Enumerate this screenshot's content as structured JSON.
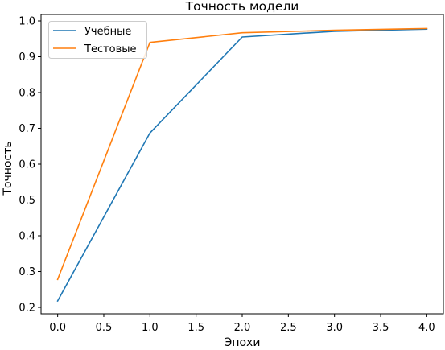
{
  "chart_data": {
    "type": "line",
    "title": "Точность модели",
    "xlabel": "Эпохи",
    "ylabel": "Точность",
    "xlim": [
      -0.18,
      4.18
    ],
    "ylim": [
      0.182,
      1.018
    ],
    "xticks": [
      0.0,
      0.5,
      1.0,
      1.5,
      2.0,
      2.5,
      3.0,
      3.5,
      4.0
    ],
    "xtick_labels": [
      "0.0",
      "0.5",
      "1.0",
      "1.5",
      "2.0",
      "2.5",
      "3.0",
      "3.5",
      "4.0"
    ],
    "yticks": [
      0.2,
      0.3,
      0.4,
      0.5,
      0.6,
      0.7,
      0.8,
      0.9,
      1.0
    ],
    "ytick_labels": [
      "0.2",
      "0.3",
      "0.4",
      "0.5",
      "0.6",
      "0.7",
      "0.8",
      "0.9",
      "1.0"
    ],
    "grid": false,
    "legend_position": "top-left",
    "x": [
      0,
      1,
      2,
      3,
      4
    ],
    "series": [
      {
        "name": "Учебные",
        "color": "#1f77b4",
        "values": [
          0.218,
          0.687,
          0.955,
          0.971,
          0.977
        ]
      },
      {
        "name": "Тестовые",
        "color": "#ff7f0e",
        "values": [
          0.278,
          0.94,
          0.967,
          0.974,
          0.979
        ]
      }
    ]
  }
}
